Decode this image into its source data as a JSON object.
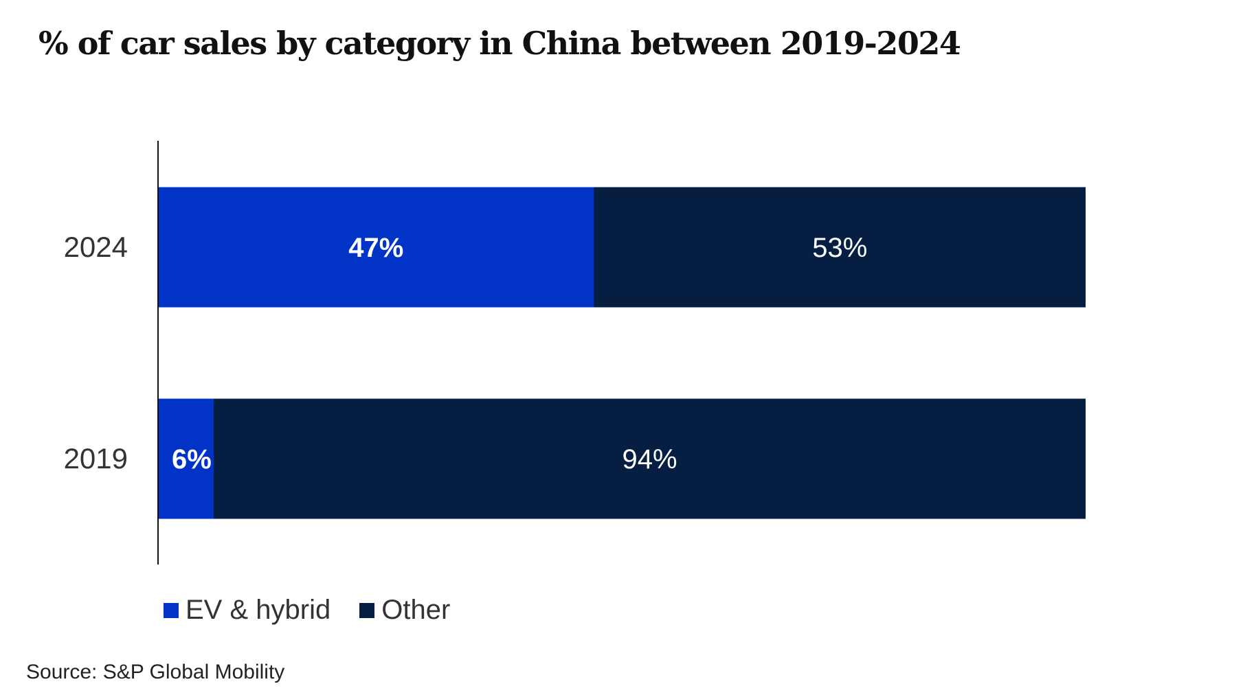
{
  "chart_data": {
    "type": "bar",
    "orientation": "horizontal",
    "stacked": true,
    "title": "% of car sales by category in China between 2019-2024",
    "categories": [
      "2024",
      "2019"
    ],
    "series": [
      {
        "name": "EV & hybrid",
        "color": "#0033c6",
        "values": [
          47,
          6
        ],
        "labels": [
          "47%",
          "6%"
        ]
      },
      {
        "name": "Other",
        "color": "#051e42",
        "values": [
          53,
          94
        ],
        "labels": [
          "53%",
          "94%"
        ]
      }
    ],
    "xlim": [
      0,
      100
    ],
    "xlabel": "",
    "ylabel": "",
    "grid": false,
    "legend_position": "bottom-left"
  },
  "legend": {
    "ev_label": "EV & hybrid",
    "other_label": "Other"
  },
  "source": "Source: S&P Global Mobility"
}
